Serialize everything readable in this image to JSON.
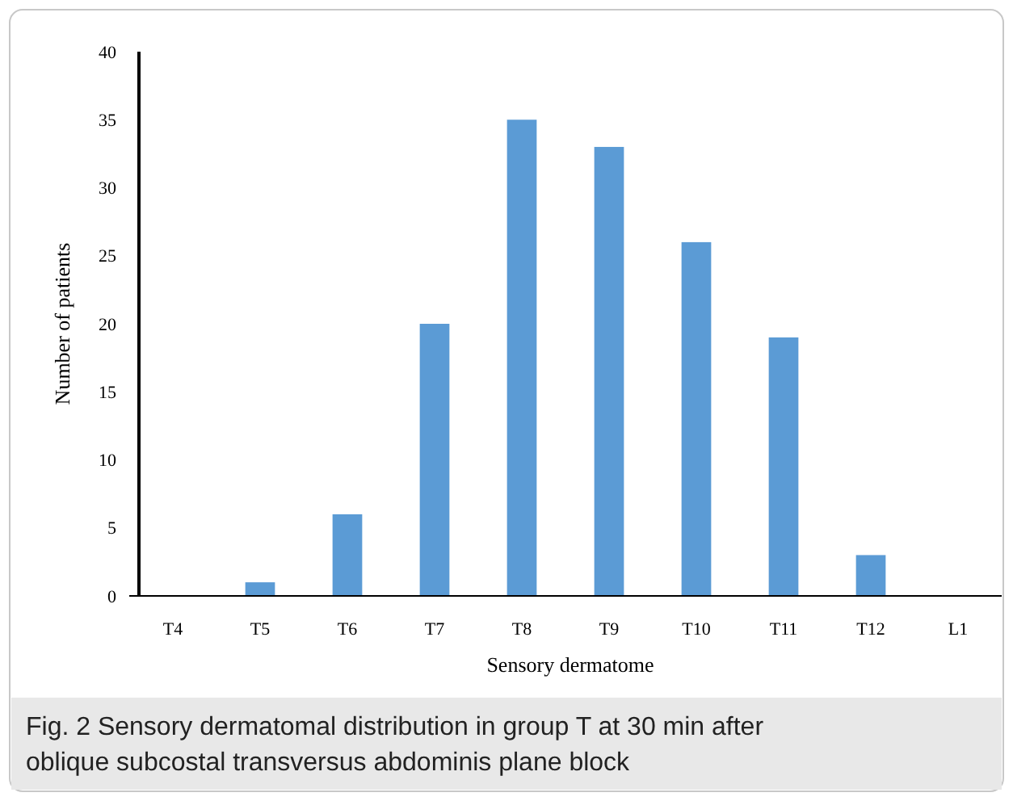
{
  "chart_data": {
    "type": "bar",
    "xlabel": "Sensory dermatome",
    "ylabel": "Number of patients",
    "categories": [
      "T4",
      "T5",
      "T6",
      "T7",
      "T8",
      "T9",
      "T10",
      "T11",
      "T12",
      "L1"
    ],
    "values": [
      0,
      1,
      6,
      20,
      35,
      33,
      26,
      19,
      3,
      0
    ],
    "color": "#5b9bd5",
    "ylim": [
      0,
      40
    ],
    "yticks": [
      0,
      5,
      10,
      15,
      20,
      25,
      30,
      35,
      40
    ],
    "grid": false,
    "annotations": [
      "Fig. 2 Sensory dermatomal distribution in group T at 30 min after oblique subcostal transversus abdominis plane block"
    ]
  }
}
